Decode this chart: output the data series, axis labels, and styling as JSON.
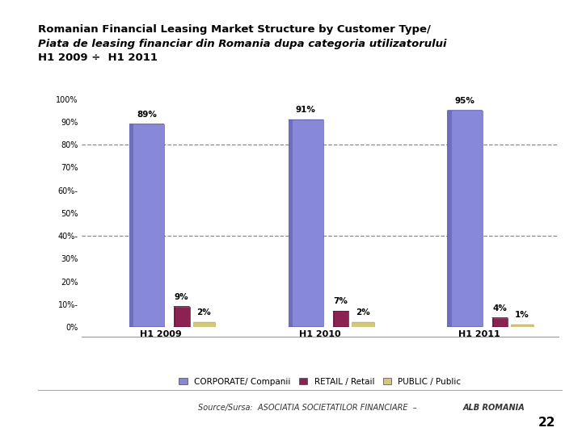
{
  "title_line1": "Romanian Financial Leasing Market Structure by Customer Type/",
  "title_line2": "Piata de leasing financiar din Romania dupa categoria utilizatorului",
  "title_line3": "H1 2009 ÷  H1 2011",
  "categories": [
    "H1 2009",
    "H1 2010",
    "H1 2011"
  ],
  "corporate": [
    89,
    91,
    95
  ],
  "retail": [
    9,
    7,
    4
  ],
  "public": [
    2,
    2,
    1
  ],
  "corp_color_main": "#8888d8",
  "corp_color_light": "#aaaaee",
  "corp_color_dark": "#5555aa",
  "corp_color_top": "#9999e0",
  "retail_color_main": "#8B2252",
  "retail_color_light": "#aa3366",
  "retail_color_dark": "#5a0f30",
  "pub_color_main": "#d4c87a",
  "pub_color_light": "#e8dca0",
  "pub_color_dark": "#b0a050",
  "floor_color": "#909090",
  "floor_shadow": "#707070",
  "bg_color": "#ffffff",
  "dashed_lines": [
    40,
    80
  ],
  "ytick_vals": [
    0,
    10,
    20,
    30,
    40,
    50,
    60,
    70,
    80,
    90,
    100
  ],
  "ytick_labels": [
    "0%",
    "10%-",
    "20%",
    "30%",
    "40%-",
    "50%",
    "60%-",
    "70%",
    "80%",
    "90%",
    "100%"
  ],
  "legend_labels": [
    "CORPORATE/ Companii",
    "RETAIL / Retail",
    "PUBLIC / Public"
  ],
  "page_number": "22"
}
